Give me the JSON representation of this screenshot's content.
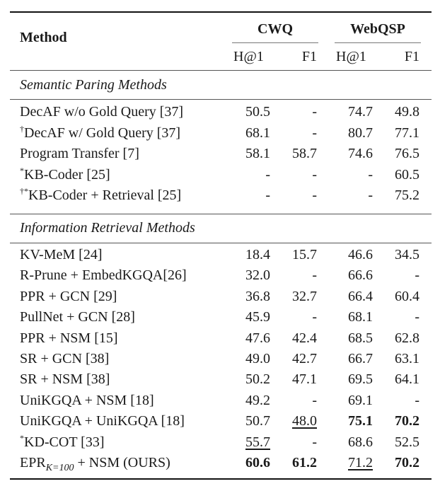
{
  "table": {
    "header": {
      "method": "Method",
      "groups": [
        {
          "label": "CWQ",
          "columns": [
            "H@1",
            "F1"
          ]
        },
        {
          "label": "WebQSP",
          "columns": [
            "H@1",
            "F1"
          ]
        }
      ]
    },
    "sections": [
      {
        "title": "Semantic Paring Methods",
        "rows": [
          {
            "prefix": "",
            "method": "DecAF w/o Gold Query [37]",
            "values": [
              "50.5",
              "-",
              "74.7",
              "49.8"
            ]
          },
          {
            "prefix": "†",
            "method": "DecAF w/ Gold Query [37]",
            "values": [
              "68.1",
              "-",
              "80.7",
              "77.1"
            ]
          },
          {
            "prefix": "",
            "method": "Program Transfer [7]",
            "values": [
              "58.1",
              "58.7",
              "74.6",
              "76.5"
            ]
          },
          {
            "prefix": "*",
            "method": "KB-Coder [25]",
            "values": [
              "-",
              "-",
              "-",
              "60.5"
            ]
          },
          {
            "prefix": "†*",
            "method": "KB-Coder + Retrieval [25]",
            "values": [
              "-",
              "-",
              "-",
              "75.2"
            ]
          }
        ]
      },
      {
        "title": "Information Retrieval Methods",
        "rows": [
          {
            "prefix": "",
            "method": "KV-MeM [24]",
            "values": [
              "18.4",
              "15.7",
              "46.6",
              "34.5"
            ]
          },
          {
            "prefix": "",
            "method": "R-Prune + EmbedKGQA[26]",
            "values": [
              "32.0",
              "-",
              "66.6",
              "-"
            ]
          },
          {
            "prefix": "",
            "method": "PPR + GCN [29]",
            "values": [
              "36.8",
              "32.7",
              "66.4",
              "60.4"
            ]
          },
          {
            "prefix": "",
            "method": "PullNet + GCN [28]",
            "values": [
              "45.9",
              "-",
              "68.1",
              "-"
            ]
          },
          {
            "prefix": "",
            "method": "PPR + NSM [15]",
            "values": [
              "47.6",
              "42.4",
              "68.5",
              "62.8"
            ]
          },
          {
            "prefix": "",
            "method": "SR + GCN [38]",
            "values": [
              "49.0",
              "42.7",
              "66.7",
              "63.1"
            ]
          },
          {
            "prefix": "",
            "method": "SR + NSM [38]",
            "values": [
              "50.2",
              "47.1",
              "69.5",
              "64.1"
            ]
          },
          {
            "prefix": "",
            "method": "UniKGQA + NSM [18]",
            "values": [
              "49.2",
              "-",
              "69.1",
              "-"
            ]
          },
          {
            "prefix": "",
            "method": "UniKGQA + UniKGQA [18]",
            "values": [
              "50.7",
              "48.0",
              "75.1",
              "70.2"
            ],
            "bold": [
              2,
              3
            ],
            "underline": [
              1
            ]
          },
          {
            "prefix": "*",
            "method": "KD-COT [33]",
            "values": [
              "55.7",
              "-",
              "68.6",
              "52.5"
            ],
            "underline": [
              0
            ]
          },
          {
            "prefix": "",
            "method": "EPR",
            "method_sub": "K=100",
            "method_suffix": " + NSM (OURS)",
            "values": [
              "60.6",
              "61.2",
              "71.2",
              "70.2"
            ],
            "bold": [
              0,
              1,
              3
            ],
            "underline": [
              2
            ]
          }
        ]
      }
    ]
  }
}
